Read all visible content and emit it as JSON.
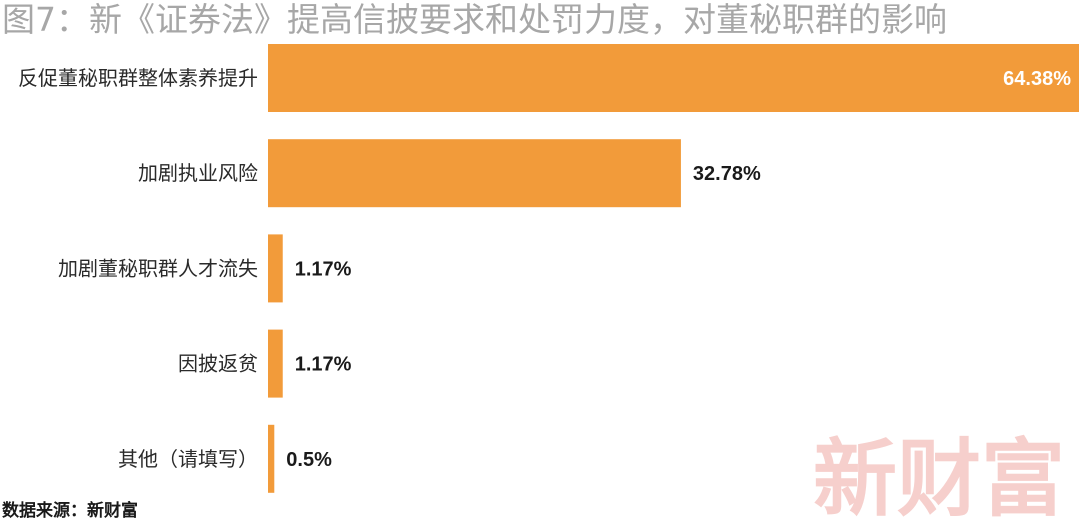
{
  "title": "图7：新《证券法》提高信披要求和处罚力度，对董秘职群的影响",
  "source": "数据来源：新财富",
  "watermark": "新财富",
  "colors": {
    "bar": "#f29b3a",
    "title": "#a7a7a7",
    "watermark": "#f6cfcc"
  },
  "chart_data": {
    "type": "bar",
    "orientation": "horizontal",
    "title": "图7：新《证券法》提高信披要求和处罚力度，对董秘职群的影响",
    "categories": [
      "反促董秘职群整体素养提升",
      "加剧执业风险",
      "加剧董秘职群人才流失",
      "因披返贫",
      "其他（请填写）"
    ],
    "values": [
      64.38,
      32.78,
      1.17,
      1.17,
      0.5
    ],
    "value_labels": [
      "64.38%",
      "32.78%",
      "1.17%",
      "1.17%",
      "0.5%"
    ],
    "unit": "%",
    "xlim": [
      0,
      64.38
    ],
    "grid": false,
    "legend": "none"
  }
}
